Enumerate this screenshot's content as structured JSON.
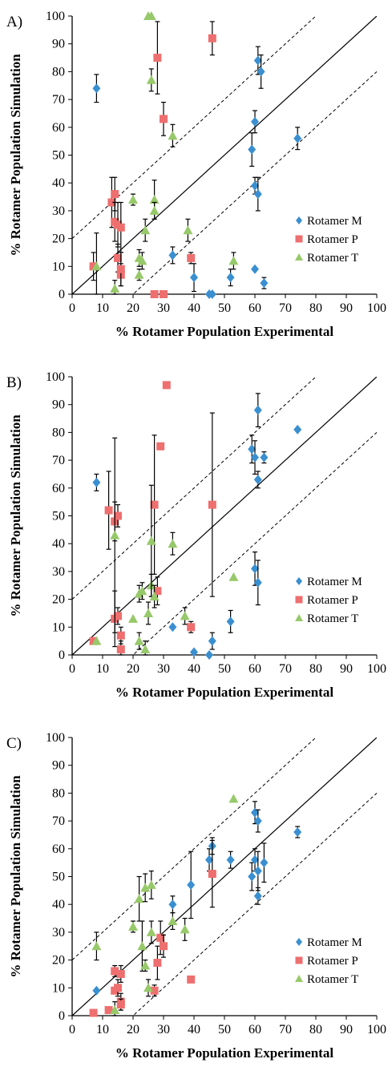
{
  "legend": [
    {
      "name": "Rotamer M",
      "color": "#3a8fd0",
      "marker": "diamond-icon"
    },
    {
      "name": "Rotamer P",
      "color": "#ee6f6f",
      "marker": "square-icon"
    },
    {
      "name": "Rotamer T",
      "color": "#97c96a",
      "marker": "triangle-icon"
    }
  ],
  "chart_data": [
    {
      "panel_label": "A)",
      "type": "scatter",
      "xlabel": "% Rotamer Population Experimental",
      "ylabel": "% Rotamer Population Simulation",
      "xlim": [
        0,
        100
      ],
      "ylim": [
        0,
        100
      ],
      "xticks": [
        "0",
        "10",
        "20",
        "30",
        "40",
        "50",
        "60",
        "70",
        "80",
        "90",
        "100"
      ],
      "yticks": [
        "0",
        "10",
        "20",
        "30",
        "40",
        "50",
        "60",
        "70",
        "80",
        "90",
        "100"
      ],
      "reference_lines": [
        {
          "style": "solid",
          "slope": 1,
          "intercept": 0
        },
        {
          "style": "dashed",
          "slope": 1,
          "intercept": 20
        },
        {
          "style": "dashed",
          "slope": 1,
          "intercept": -20
        }
      ],
      "series": [
        {
          "name": "Rotamer M",
          "points": [
            {
              "x": 8,
              "y": 74,
              "err": 5
            },
            {
              "x": 33,
              "y": 14,
              "err": 3
            },
            {
              "x": 40,
              "y": 6,
              "err": 5
            },
            {
              "x": 45,
              "y": 0,
              "err": 0
            },
            {
              "x": 46,
              "y": 0,
              "err": 0
            },
            {
              "x": 52,
              "y": 6,
              "err": 3
            },
            {
              "x": 59,
              "y": 52,
              "err": 6
            },
            {
              "x": 60,
              "y": 39,
              "err": 3
            },
            {
              "x": 60,
              "y": 9,
              "err": 0
            },
            {
              "x": 60,
              "y": 62,
              "err": 4
            },
            {
              "x": 61,
              "y": 84,
              "err": 5
            },
            {
              "x": 61,
              "y": 36,
              "err": 6
            },
            {
              "x": 62,
              "y": 80,
              "err": 6
            },
            {
              "x": 63,
              "y": 4,
              "err": 2
            },
            {
              "x": 74,
              "y": 56,
              "err": 4
            }
          ]
        },
        {
          "name": "Rotamer P",
          "points": [
            {
              "x": 7,
              "y": 10,
              "err": 5
            },
            {
              "x": 13,
              "y": 33,
              "err": 9
            },
            {
              "x": 14,
              "y": 26,
              "err": 7
            },
            {
              "x": 14,
              "y": 36,
              "err": 6
            },
            {
              "x": 15,
              "y": 25,
              "err": 8
            },
            {
              "x": 15,
              "y": 13,
              "err": 5
            },
            {
              "x": 16,
              "y": 24,
              "err": 9
            },
            {
              "x": 16,
              "y": 7,
              "err": 4
            },
            {
              "x": 16,
              "y": 9,
              "err": 6
            },
            {
              "x": 27,
              "y": 0,
              "err": 0
            },
            {
              "x": 28,
              "y": 85,
              "err": 13
            },
            {
              "x": 30,
              "y": 63,
              "err": 6
            },
            {
              "x": 30,
              "y": 0,
              "err": 0
            },
            {
              "x": 39,
              "y": 13,
              "err": 2
            },
            {
              "x": 46,
              "y": 92,
              "err": 6
            }
          ]
        },
        {
          "name": "Rotamer T",
          "points": [
            {
              "x": 8,
              "y": 10,
              "err": 12
            },
            {
              "x": 14,
              "y": 2,
              "err": 3
            },
            {
              "x": 20,
              "y": 34,
              "err": 2
            },
            {
              "x": 22,
              "y": 13,
              "err": 3
            },
            {
              "x": 22,
              "y": 7,
              "err": 2
            },
            {
              "x": 23,
              "y": 12,
              "err": 3
            },
            {
              "x": 24,
              "y": 23,
              "err": 4
            },
            {
              "x": 25,
              "y": 100,
              "err": 0
            },
            {
              "x": 26,
              "y": 77,
              "err": 4
            },
            {
              "x": 26,
              "y": 100,
              "err": 0
            },
            {
              "x": 27,
              "y": 34,
              "err": 7
            },
            {
              "x": 27,
              "y": 30,
              "err": 3
            },
            {
              "x": 33,
              "y": 57,
              "err": 4
            },
            {
              "x": 38,
              "y": 23,
              "err": 4
            },
            {
              "x": 53,
              "y": 12,
              "err": 3
            }
          ]
        }
      ]
    },
    {
      "panel_label": "B)",
      "type": "scatter",
      "xlabel": "% Rotamer Population Experimental",
      "ylabel": "% Rotamer Population Simulation",
      "xlim": [
        0,
        100
      ],
      "ylim": [
        0,
        100
      ],
      "xticks": [
        "0",
        "10",
        "20",
        "30",
        "40",
        "50",
        "60",
        "70",
        "80",
        "90",
        "100"
      ],
      "yticks": [
        "0",
        "10",
        "20",
        "30",
        "40",
        "50",
        "60",
        "70",
        "80",
        "90",
        "100"
      ],
      "reference_lines": [
        {
          "style": "solid",
          "slope": 1,
          "intercept": 0
        },
        {
          "style": "dashed",
          "slope": 1,
          "intercept": 20
        },
        {
          "style": "dashed",
          "slope": 1,
          "intercept": -20
        }
      ],
      "series": [
        {
          "name": "Rotamer M",
          "points": [
            {
              "x": 8,
              "y": 62,
              "err": 3
            },
            {
              "x": 33,
              "y": 10,
              "err": 0
            },
            {
              "x": 40,
              "y": 1,
              "err": 0
            },
            {
              "x": 45,
              "y": 0,
              "err": 0
            },
            {
              "x": 46,
              "y": 5,
              "err": 3
            },
            {
              "x": 52,
              "y": 12,
              "err": 4
            },
            {
              "x": 59,
              "y": 74,
              "err": 5
            },
            {
              "x": 60,
              "y": 71,
              "err": 6
            },
            {
              "x": 60,
              "y": 31,
              "err": 6
            },
            {
              "x": 61,
              "y": 88,
              "err": 6
            },
            {
              "x": 61,
              "y": 26,
              "err": 8
            },
            {
              "x": 61,
              "y": 63,
              "err": 3
            },
            {
              "x": 63,
              "y": 71,
              "err": 2
            },
            {
              "x": 74,
              "y": 81,
              "err": 0
            }
          ]
        },
        {
          "name": "Rotamer P",
          "points": [
            {
              "x": 7,
              "y": 5,
              "err": 0
            },
            {
              "x": 12,
              "y": 52,
              "err": 14
            },
            {
              "x": 14,
              "y": 48,
              "err": 7
            },
            {
              "x": 14,
              "y": 13,
              "err": 10
            },
            {
              "x": 15,
              "y": 50,
              "err": 4
            },
            {
              "x": 15,
              "y": 14,
              "err": 3
            },
            {
              "x": 16,
              "y": 7,
              "err": 3
            },
            {
              "x": 16,
              "y": 2,
              "err": 3
            },
            {
              "x": 27,
              "y": 54,
              "err": 25
            },
            {
              "x": 28,
              "y": 23,
              "err": 5
            },
            {
              "x": 29,
              "y": 75,
              "err": 0
            },
            {
              "x": 31,
              "y": 97,
              "err": 0
            },
            {
              "x": 39,
              "y": 10,
              "err": 2
            },
            {
              "x": 46,
              "y": 54,
              "err": 33
            }
          ]
        },
        {
          "name": "Rotamer T",
          "points": [
            {
              "x": 8,
              "y": 5,
              "err": 0
            },
            {
              "x": 14,
              "y": 43,
              "err": 35
            },
            {
              "x": 20,
              "y": 13,
              "err": 0
            },
            {
              "x": 22,
              "y": 22,
              "err": 3
            },
            {
              "x": 22,
              "y": 5,
              "err": 3
            },
            {
              "x": 23,
              "y": 23,
              "err": 3
            },
            {
              "x": 24,
              "y": 2,
              "err": 3
            },
            {
              "x": 25,
              "y": 15,
              "err": 4
            },
            {
              "x": 26,
              "y": 25,
              "err": 4
            },
            {
              "x": 26,
              "y": 41,
              "err": 20
            },
            {
              "x": 27,
              "y": 21,
              "err": 4
            },
            {
              "x": 33,
              "y": 40,
              "err": 4
            },
            {
              "x": 37,
              "y": 14,
              "err": 3
            },
            {
              "x": 53,
              "y": 28,
              "err": 0
            }
          ]
        }
      ]
    },
    {
      "panel_label": "C)",
      "type": "scatter",
      "xlabel": "% Rotamer Population Experimental",
      "ylabel": "% Rotamer Population Simulation",
      "xlim": [
        0,
        100
      ],
      "ylim": [
        0,
        100
      ],
      "xticks": [
        "0",
        "10",
        "20",
        "30",
        "40",
        "50",
        "60",
        "70",
        "80",
        "90",
        "100"
      ],
      "yticks": [
        "0",
        "10",
        "20",
        "30",
        "40",
        "50",
        "60",
        "70",
        "80",
        "90",
        "100"
      ],
      "reference_lines": [
        {
          "style": "solid",
          "slope": 1,
          "intercept": 0
        },
        {
          "style": "dashed",
          "slope": 1,
          "intercept": 20
        },
        {
          "style": "dashed",
          "slope": 1,
          "intercept": -20
        }
      ],
      "series": [
        {
          "name": "Rotamer M",
          "points": [
            {
              "x": 8,
              "y": 9,
              "err": 0
            },
            {
              "x": 33,
              "y": 40,
              "err": 3
            },
            {
              "x": 39,
              "y": 47,
              "err": 12
            },
            {
              "x": 45,
              "y": 56,
              "err": 4
            },
            {
              "x": 46,
              "y": 61,
              "err": 3
            },
            {
              "x": 52,
              "y": 56,
              "err": 3
            },
            {
              "x": 59,
              "y": 50,
              "err": 5
            },
            {
              "x": 60,
              "y": 73,
              "err": 4
            },
            {
              "x": 61,
              "y": 70,
              "err": 4
            },
            {
              "x": 60,
              "y": 56,
              "err": 4
            },
            {
              "x": 61,
              "y": 43,
              "err": 3
            },
            {
              "x": 61,
              "y": 52,
              "err": 7
            },
            {
              "x": 63,
              "y": 55,
              "err": 7
            },
            {
              "x": 74,
              "y": 66,
              "err": 2
            }
          ]
        },
        {
          "name": "Rotamer P",
          "points": [
            {
              "x": 7,
              "y": 1,
              "err": 0
            },
            {
              "x": 12,
              "y": 2,
              "err": 0
            },
            {
              "x": 14,
              "y": 16,
              "err": 2
            },
            {
              "x": 14,
              "y": 9,
              "err": 0
            },
            {
              "x": 15,
              "y": 10,
              "err": 3
            },
            {
              "x": 16,
              "y": 15,
              "err": 3
            },
            {
              "x": 16,
              "y": 5,
              "err": 3
            },
            {
              "x": 16,
              "y": 4,
              "err": 2
            },
            {
              "x": 27,
              "y": 9,
              "err": 2
            },
            {
              "x": 28,
              "y": 19,
              "err": 6
            },
            {
              "x": 29,
              "y": 28,
              "err": 6
            },
            {
              "x": 30,
              "y": 25,
              "err": 4
            },
            {
              "x": 39,
              "y": 13,
              "err": 0
            },
            {
              "x": 46,
              "y": 51,
              "err": 12
            }
          ]
        },
        {
          "name": "Rotamer T",
          "points": [
            {
              "x": 8,
              "y": 25,
              "err": 5
            },
            {
              "x": 14,
              "y": 2,
              "err": 3
            },
            {
              "x": 20,
              "y": 32,
              "err": 2
            },
            {
              "x": 22,
              "y": 42,
              "err": 8
            },
            {
              "x": 23,
              "y": 25,
              "err": 9
            },
            {
              "x": 24,
              "y": 46,
              "err": 5
            },
            {
              "x": 24,
              "y": 18,
              "err": 2
            },
            {
              "x": 25,
              "y": 10,
              "err": 3
            },
            {
              "x": 26,
              "y": 47,
              "err": 5
            },
            {
              "x": 26,
              "y": 30,
              "err": 4
            },
            {
              "x": 33,
              "y": 34,
              "err": 3
            },
            {
              "x": 37,
              "y": 31,
              "err": 4
            },
            {
              "x": 53,
              "y": 78,
              "err": 0
            }
          ]
        }
      ]
    }
  ]
}
